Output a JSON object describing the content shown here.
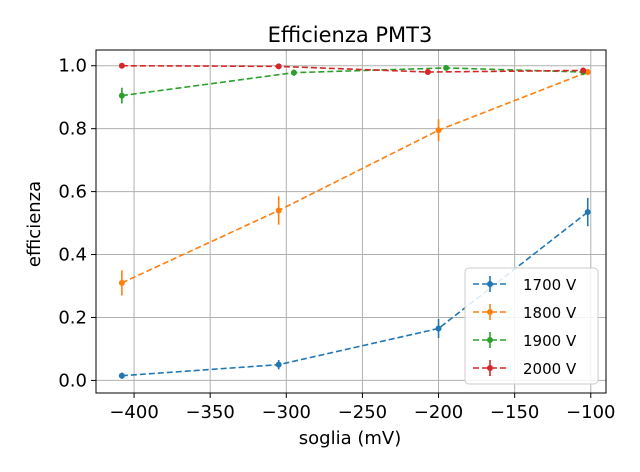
{
  "chart_data": {
    "type": "line",
    "title": "Efficienza PMT3",
    "xlabel": "soglia (mV)",
    "ylabel": "efficienza",
    "xlim": [
      -425,
      -90
    ],
    "ylim": [
      -0.04,
      1.05
    ],
    "xticks": [
      -400,
      -350,
      -300,
      -250,
      -200,
      -150,
      -100
    ],
    "xtick_labels": [
      "−400",
      "−350",
      "−300",
      "−250",
      "−200",
      "−150",
      "−100"
    ],
    "yticks": [
      0.0,
      0.2,
      0.4,
      0.6,
      0.8,
      1.0
    ],
    "ytick_labels": [
      "0.0",
      "0.2",
      "0.4",
      "0.6",
      "0.8",
      "1.0"
    ],
    "grid": true,
    "legend_position": "lower-right",
    "series": [
      {
        "name": "1700 V",
        "color": "#1f77b4",
        "points": [
          {
            "x": -408,
            "y": 0.015,
            "yerr": 0.01
          },
          {
            "x": -305,
            "y": 0.05,
            "yerr": 0.015
          },
          {
            "x": -200,
            "y": 0.165,
            "yerr": 0.03
          },
          {
            "x": -102,
            "y": 0.535,
            "yerr": 0.045
          }
        ]
      },
      {
        "name": "1800 V",
        "color": "#ff7f0e",
        "points": [
          {
            "x": -408,
            "y": 0.31,
            "yerr": 0.04
          },
          {
            "x": -305,
            "y": 0.54,
            "yerr": 0.045
          },
          {
            "x": -200,
            "y": 0.795,
            "yerr": 0.035
          },
          {
            "x": -102,
            "y": 0.98,
            "yerr": 0.01
          }
        ]
      },
      {
        "name": "1900 V",
        "color": "#2ca02c",
        "points": [
          {
            "x": -408,
            "y": 0.905,
            "yerr": 0.025
          },
          {
            "x": -295,
            "y": 0.978,
            "yerr": 0.01
          },
          {
            "x": -195,
            "y": 0.993,
            "yerr": 0.005
          },
          {
            "x": -105,
            "y": 0.98,
            "yerr": 0.01
          }
        ]
      },
      {
        "name": "2000 V",
        "color": "#d62728",
        "points": [
          {
            "x": -408,
            "y": 1.0,
            "yerr": 0.003
          },
          {
            "x": -305,
            "y": 0.998,
            "yerr": 0.003
          },
          {
            "x": -207,
            "y": 0.98,
            "yerr": 0.006
          },
          {
            "x": -105,
            "y": 0.985,
            "yerr": 0.008
          }
        ]
      }
    ]
  }
}
